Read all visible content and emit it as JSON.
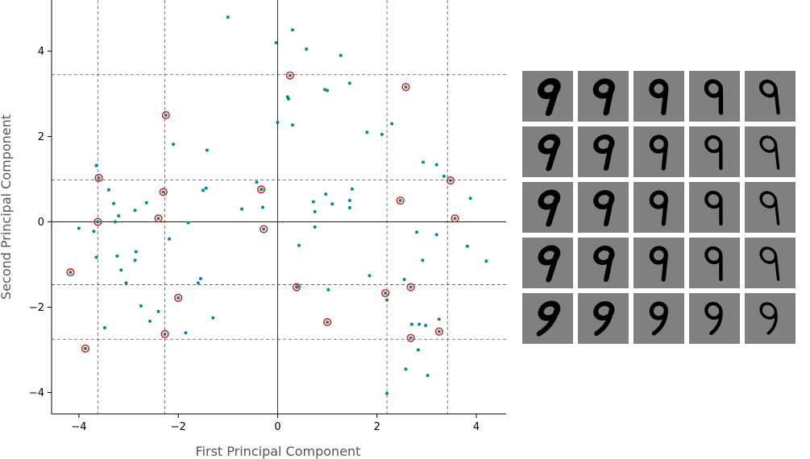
{
  "chart_data": {
    "type": "scatter",
    "xlabel": "First Principal Component",
    "ylabel": "Second Principal Component",
    "xlim": [
      -4.55,
      4.6
    ],
    "ylim": [
      -4.5,
      5.2
    ],
    "xticks": [
      -4,
      -2,
      0,
      2,
      4
    ],
    "xtick_labels": [
      "−4",
      "−2",
      "0",
      "2",
      "4"
    ],
    "yticks": [
      -4,
      -2,
      0,
      2,
      4
    ],
    "ytick_labels": [
      "−4",
      "−2",
      "0",
      "2",
      "4"
    ],
    "grid": false,
    "zero_lines": true,
    "dashed_vlines": [
      -3.62,
      -2.27,
      2.2,
      3.42
    ],
    "dashed_hlines": [
      3.45,
      0.98,
      -1.47,
      -2.75
    ],
    "point_color": "#008B8B",
    "highlight_color": "#D62728",
    "series": [
      {
        "values": [
          [
            -1.0,
            4.8
          ],
          [
            0.3,
            4.5
          ],
          [
            -0.03,
            4.2
          ],
          [
            0.58,
            4.05
          ],
          [
            1.27,
            3.9
          ],
          [
            0.2,
            2.93
          ],
          [
            0.22,
            2.88
          ],
          [
            0.95,
            3.1
          ],
          [
            1.0,
            3.08
          ],
          [
            1.45,
            3.25
          ],
          [
            0.0,
            2.33
          ],
          [
            0.3,
            2.27
          ],
          [
            1.8,
            2.1
          ],
          [
            2.1,
            2.05
          ],
          [
            2.3,
            2.3
          ],
          [
            -2.1,
            1.82
          ],
          [
            -1.42,
            1.68
          ],
          [
            2.93,
            1.4
          ],
          [
            3.2,
            1.34
          ],
          [
            -3.65,
            1.32
          ],
          [
            -0.42,
            0.93
          ],
          [
            3.35,
            1.07
          ],
          [
            -3.4,
            0.75
          ],
          [
            -1.5,
            0.74
          ],
          [
            -1.44,
            0.79
          ],
          [
            -0.32,
            0.76
          ],
          [
            0.97,
            0.65
          ],
          [
            1.5,
            0.77
          ],
          [
            3.88,
            0.55
          ],
          [
            -3.3,
            0.43
          ],
          [
            -2.64,
            0.45
          ],
          [
            -0.72,
            0.3
          ],
          [
            0.72,
            0.47
          ],
          [
            1.1,
            0.42
          ],
          [
            1.45,
            0.5
          ],
          [
            1.45,
            0.33
          ],
          [
            -0.3,
            0.34
          ],
          [
            -2.87,
            0.27
          ],
          [
            -3.2,
            0.14
          ],
          [
            -3.27,
            0.0
          ],
          [
            0.75,
            0.24
          ],
          [
            -1.8,
            -0.02
          ],
          [
            -4.0,
            -0.15
          ],
          [
            -3.7,
            -0.22
          ],
          [
            0.75,
            -0.12
          ],
          [
            2.8,
            -0.24
          ],
          [
            3.2,
            -0.3
          ],
          [
            -2.18,
            -0.4
          ],
          [
            0.43,
            -0.55
          ],
          [
            3.82,
            -0.57
          ],
          [
            -2.85,
            -0.7
          ],
          [
            -3.23,
            -0.8
          ],
          [
            -3.65,
            -0.83
          ],
          [
            4.2,
            -0.92
          ],
          [
            -2.87,
            -0.9
          ],
          [
            2.92,
            -0.9
          ],
          [
            -3.15,
            -1.13
          ],
          [
            1.85,
            -1.26
          ],
          [
            -1.55,
            -1.33
          ],
          [
            2.55,
            -1.35
          ],
          [
            -1.6,
            -1.43
          ],
          [
            -3.05,
            -1.43
          ],
          [
            0.4,
            -1.52
          ],
          [
            1.02,
            -1.59
          ],
          [
            2.2,
            -1.83
          ],
          [
            -2.75,
            -1.97
          ],
          [
            -2.4,
            -2.1
          ],
          [
            -1.3,
            -2.25
          ],
          [
            -2.57,
            -2.33
          ],
          [
            3.25,
            -2.28
          ],
          [
            2.7,
            -2.4
          ],
          [
            2.85,
            -2.4
          ],
          [
            2.98,
            -2.43
          ],
          [
            -3.48,
            -2.48
          ],
          [
            -1.85,
            -2.6
          ],
          [
            2.83,
            -3.0
          ],
          [
            2.58,
            -3.45
          ],
          [
            3.02,
            -3.6
          ],
          [
            2.2,
            -4.02
          ]
        ]
      },
      {
        "values": [
          [
            0.25,
            3.43
          ],
          [
            2.58,
            3.16
          ],
          [
            -2.25,
            2.5
          ],
          [
            -3.6,
            1.03
          ],
          [
            3.48,
            0.97
          ],
          [
            -2.3,
            0.7
          ],
          [
            -0.33,
            0.76
          ],
          [
            2.47,
            0.5
          ],
          [
            -2.4,
            0.08
          ],
          [
            3.57,
            0.08
          ],
          [
            -3.62,
            0.0
          ],
          [
            -0.28,
            -0.17
          ],
          [
            -4.17,
            -1.18
          ],
          [
            0.38,
            -1.53
          ],
          [
            2.68,
            -1.53
          ],
          [
            -2.0,
            -1.78
          ],
          [
            2.17,
            -1.67
          ],
          [
            1.0,
            -2.35
          ],
          [
            3.25,
            -2.57
          ],
          [
            -2.27,
            -2.63
          ],
          [
            2.68,
            -2.72
          ],
          [
            -3.87,
            -2.97
          ]
        ]
      }
    ]
  },
  "thumbnail_grid": {
    "rows": 5,
    "cols": 5,
    "glyph": "9",
    "background": "#808080",
    "ink": "#000000"
  }
}
